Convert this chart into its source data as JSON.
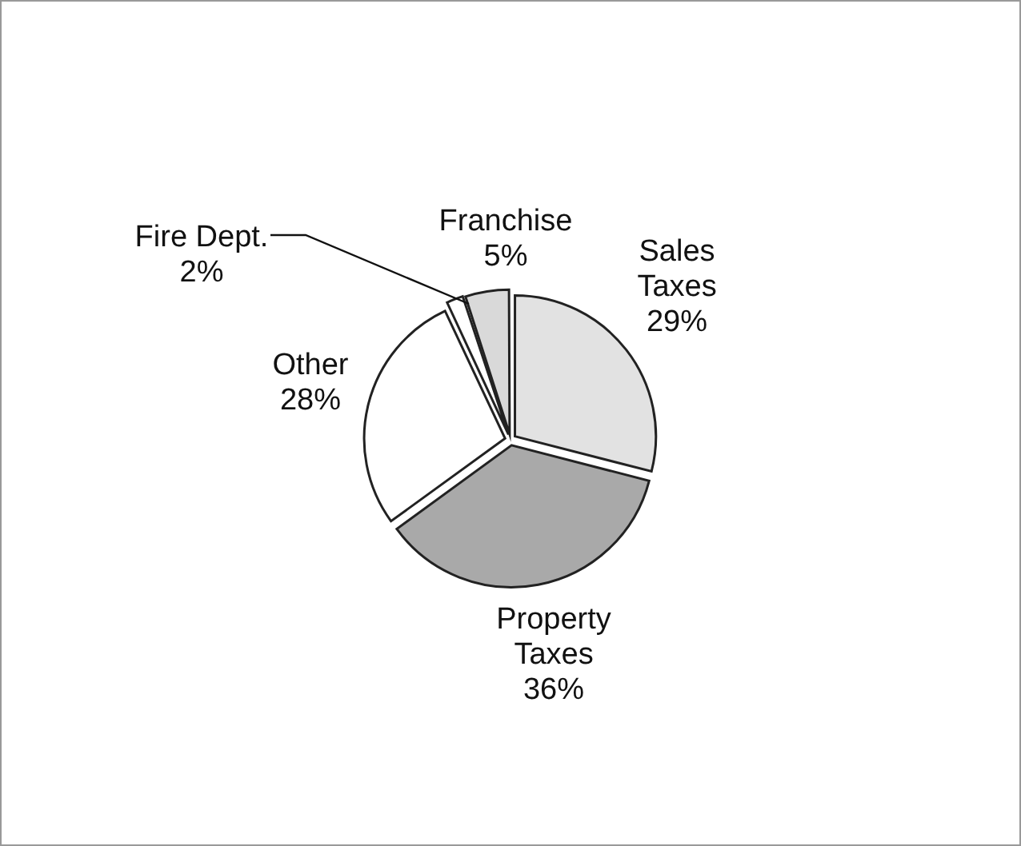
{
  "chart_data": {
    "type": "pie",
    "categories": [
      "Sales Taxes",
      "Property Taxes",
      "Other",
      "Fire Dept.",
      "Franchise"
    ],
    "values": [
      29,
      36,
      28,
      2,
      5
    ],
    "colors": [
      "#e2e2e2",
      "#a9a9a9",
      "#ffffff",
      "#ffffff",
      "#d9d9d9"
    ],
    "value_labels": [
      "29%",
      "36%",
      "28%",
      "2%",
      "5%"
    ],
    "legend": false
  }
}
